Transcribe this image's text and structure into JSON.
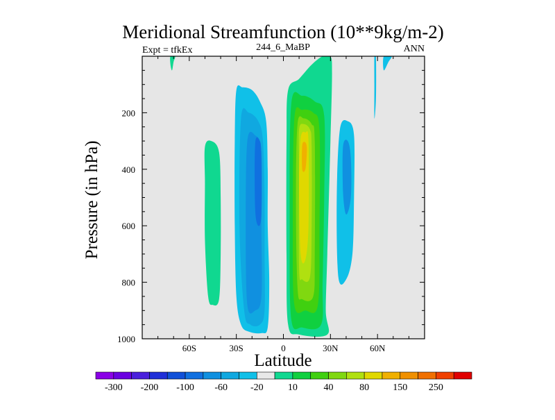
{
  "chart_data": {
    "type": "contour",
    "title": "Meridional Streamfunction (10**9kg/m-2)",
    "subtitle_left": "Expt = tfkEx",
    "subtitle_center": "244_6_MaBP",
    "subtitle_right": "ANN",
    "xlabel": "Latitude",
    "ylabel": "Pressure (in hPa)",
    "x_range": [
      -90,
      90
    ],
    "y_range": [
      1000,
      0
    ],
    "x_ticks": [
      {
        "value": -60,
        "label": "60S"
      },
      {
        "value": -30,
        "label": "30S"
      },
      {
        "value": 0,
        "label": "0"
      },
      {
        "value": 30,
        "label": "30N"
      },
      {
        "value": 60,
        "label": "60N"
      }
    ],
    "y_ticks": [
      {
        "value": 200,
        "label": "200"
      },
      {
        "value": 400,
        "label": "400"
      },
      {
        "value": 600,
        "label": "600"
      },
      {
        "value": 800,
        "label": "800"
      },
      {
        "value": 1000,
        "label": "1000"
      }
    ],
    "background_color": "#e6e6e6",
    "colorbar": {
      "colors": [
        "#8a00e6",
        "#6a00e0",
        "#4a20dc",
        "#2030d8",
        "#1050d8",
        "#1070e0",
        "#1090e0",
        "#10a8e0",
        "#10c0e8",
        "#e8e8e8",
        "#10d890",
        "#10d040",
        "#40d010",
        "#80d810",
        "#b0e010",
        "#e0d800",
        "#f0b000",
        "#f09000",
        "#f07000",
        "#f04000",
        "#e00000"
      ],
      "labels": [
        "-300",
        "-200",
        "-100",
        "-60",
        "-20",
        "10",
        "40",
        "80",
        "150",
        "250"
      ]
    },
    "contours": [
      {
        "color": "#10d890",
        "points": [
          [
            -72,
            0
          ],
          [
            -69,
            0
          ],
          [
            -70,
            20
          ],
          [
            -71,
            50
          ],
          [
            -72,
            30
          ]
        ]
      },
      {
        "color": "#10d890",
        "points": [
          [
            -50,
            320
          ],
          [
            -46,
            300
          ],
          [
            -41,
            340
          ],
          [
            -40,
            500
          ],
          [
            -40,
            700
          ],
          [
            -41,
            860
          ],
          [
            -45,
            880
          ],
          [
            -48,
            850
          ],
          [
            -50,
            650
          ],
          [
            -50,
            450
          ]
        ]
      },
      {
        "color": "#10c0e8",
        "points": [
          [
            -30,
            120
          ],
          [
            -26,
            110
          ],
          [
            -20,
            120
          ],
          [
            -15,
            160
          ],
          [
            -11,
            230
          ],
          [
            -10,
            400
          ],
          [
            -10,
            600
          ],
          [
            -9,
            800
          ],
          [
            -10,
            960
          ],
          [
            -14,
            980
          ],
          [
            -22,
            975
          ],
          [
            -27,
            950
          ],
          [
            -30,
            850
          ],
          [
            -31,
            600
          ],
          [
            -31,
            300
          ]
        ]
      },
      {
        "color": "#10a8e0",
        "points": [
          [
            -27,
            220
          ],
          [
            -22,
            200
          ],
          [
            -16,
            230
          ],
          [
            -13,
            300
          ],
          [
            -12,
            500
          ],
          [
            -12,
            700
          ],
          [
            -12,
            900
          ],
          [
            -15,
            950
          ],
          [
            -21,
            950
          ],
          [
            -25,
            900
          ],
          [
            -28,
            600
          ]
        ]
      },
      {
        "color": "#1090e0",
        "points": [
          [
            -23,
            300
          ],
          [
            -18,
            280
          ],
          [
            -14,
            340
          ],
          [
            -14,
            600
          ],
          [
            -14,
            850
          ],
          [
            -18,
            900
          ],
          [
            -23,
            880
          ],
          [
            -24,
            600
          ]
        ]
      },
      {
        "color": "#1070e0",
        "points": [
          [
            -18,
            310
          ],
          [
            -15,
            300
          ],
          [
            -14,
            360
          ],
          [
            -14,
            560
          ],
          [
            -16,
            600
          ],
          [
            -18,
            540
          ]
        ]
      },
      {
        "color": "#10d890",
        "points": [
          [
            3,
            120
          ],
          [
            10,
            80
          ],
          [
            18,
            30
          ],
          [
            25,
            0
          ],
          [
            30,
            0
          ],
          [
            31,
            60
          ],
          [
            30,
            300
          ],
          [
            28,
            700
          ],
          [
            27,
            900
          ],
          [
            28,
            985
          ],
          [
            10,
            985
          ],
          [
            3,
            950
          ],
          [
            2,
            700
          ],
          [
            2,
            300
          ]
        ]
      },
      {
        "color": "#10d040",
        "points": [
          [
            5,
            170
          ],
          [
            12,
            140
          ],
          [
            20,
            160
          ],
          [
            26,
            210
          ],
          [
            26,
            500
          ],
          [
            25,
            800
          ],
          [
            24,
            950
          ],
          [
            12,
            960
          ],
          [
            5,
            930
          ],
          [
            4,
            600
          ]
        ]
      },
      {
        "color": "#40d010",
        "points": [
          [
            7,
            220
          ],
          [
            12,
            190
          ],
          [
            19,
            200
          ],
          [
            23,
            260
          ],
          [
            23,
            600
          ],
          [
            22,
            880
          ],
          [
            14,
            900
          ],
          [
            7,
            880
          ],
          [
            6,
            600
          ]
        ]
      },
      {
        "color": "#80d810",
        "points": [
          [
            9,
            240
          ],
          [
            13,
            220
          ],
          [
            18,
            240
          ],
          [
            20,
            300
          ],
          [
            20,
            700
          ],
          [
            19,
            850
          ],
          [
            12,
            860
          ],
          [
            9,
            820
          ],
          [
            8,
            500
          ]
        ]
      },
      {
        "color": "#b0e010",
        "points": [
          [
            10,
            260
          ],
          [
            13,
            240
          ],
          [
            17,
            260
          ],
          [
            18,
            320
          ],
          [
            18,
            600
          ],
          [
            17,
            780
          ],
          [
            12,
            790
          ],
          [
            10,
            750
          ],
          [
            10,
            400
          ]
        ]
      },
      {
        "color": "#e0d800",
        "points": [
          [
            11,
            290
          ],
          [
            14,
            270
          ],
          [
            16,
            300
          ],
          [
            16,
            600
          ],
          [
            14,
            720
          ],
          [
            11,
            700
          ],
          [
            10,
            450
          ]
        ]
      },
      {
        "color": "#f0b000",
        "points": [
          [
            12,
            315
          ],
          [
            14,
            305
          ],
          [
            15,
            330
          ],
          [
            14,
            400
          ],
          [
            12,
            400
          ]
        ]
      },
      {
        "color": "#10c0e8",
        "points": [
          [
            36,
            260
          ],
          [
            41,
            230
          ],
          [
            45,
            280
          ],
          [
            45,
            500
          ],
          [
            44,
            700
          ],
          [
            40,
            790
          ],
          [
            35,
            780
          ],
          [
            34,
            500
          ]
        ]
      },
      {
        "color": "#1090e0",
        "points": [
          [
            38,
            320
          ],
          [
            41,
            300
          ],
          [
            43,
            360
          ],
          [
            43,
            500
          ],
          [
            40,
            560
          ],
          [
            38,
            480
          ]
        ]
      },
      {
        "color": "#10c0e8",
        "points": [
          [
            58,
            0
          ],
          [
            59,
            0
          ],
          [
            59,
            150
          ],
          [
            58,
            220
          ],
          [
            58,
            100
          ]
        ]
      },
      {
        "color": "#10c0e8",
        "points": [
          [
            64,
            0
          ],
          [
            69,
            0
          ],
          [
            67,
            20
          ],
          [
            64,
            50
          ]
        ]
      }
    ]
  }
}
